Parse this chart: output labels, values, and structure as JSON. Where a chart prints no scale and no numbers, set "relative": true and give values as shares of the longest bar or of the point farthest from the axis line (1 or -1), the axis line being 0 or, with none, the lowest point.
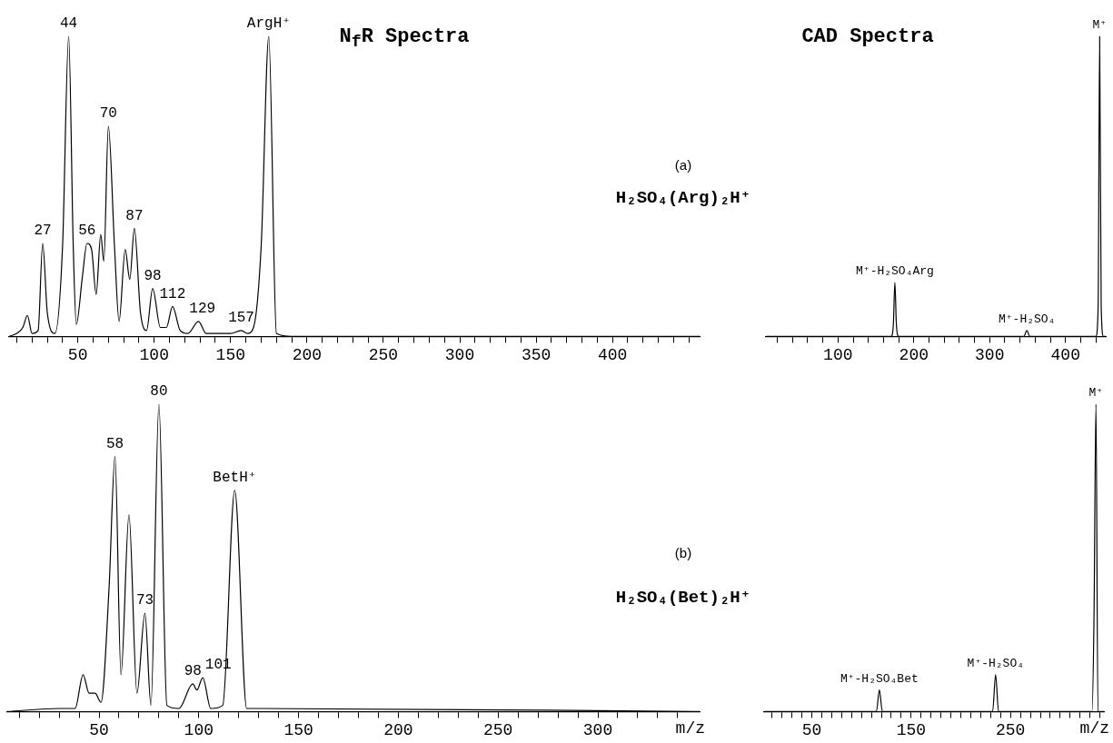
{
  "chart_data": [
    {
      "type": "line",
      "title": "N$_{f}$R Spectra",
      "relative": true,
      "tick_labels": "x",
      "grid": false,
      "legend": false,
      "marker": "none",
      "line_style": "solid",
      "xlim": [
        5,
        457
      ],
      "xticks": [
        {
          "value": 10,
          "label": null
        },
        {
          "value": 20,
          "label": null
        },
        {
          "value": 30,
          "label": null
        },
        {
          "value": 40,
          "label": null
        },
        50,
        {
          "value": 60,
          "label": null
        },
        {
          "value": 70,
          "label": null
        },
        {
          "value": 80,
          "label": null
        },
        {
          "value": 90,
          "label": null
        },
        100,
        {
          "value": 110,
          "label": null
        },
        {
          "value": 120,
          "label": null
        },
        {
          "value": 130,
          "label": null
        },
        {
          "value": 140,
          "label": null
        },
        150,
        {
          "value": 160,
          "label": null
        },
        {
          "value": 170,
          "label": null
        },
        {
          "value": 180,
          "label": null
        },
        {
          "value": 190,
          "label": null
        },
        200,
        {
          "value": 210,
          "label": null
        },
        {
          "value": 220,
          "label": null
        },
        {
          "value": 230,
          "label": null
        },
        {
          "value": 240,
          "label": null
        },
        250,
        {
          "value": 260,
          "label": null
        },
        {
          "value": 270,
          "label": null
        },
        {
          "value": 280,
          "label": null
        },
        {
          "value": 290,
          "label": null
        },
        300,
        {
          "value": 310,
          "label": null
        },
        {
          "value": 320,
          "label": null
        },
        {
          "value": 330,
          "label": null
        },
        {
          "value": 340,
          "label": null
        },
        350,
        {
          "value": 360,
          "label": null
        },
        {
          "value": 370,
          "label": null
        },
        {
          "value": 380,
          "label": null
        },
        {
          "value": 390,
          "label": null
        },
        400,
        {
          "value": 410,
          "label": null
        },
        {
          "value": 420,
          "label": null
        },
        {
          "value": 430,
          "label": null
        },
        {
          "value": 440,
          "label": null
        },
        {
          "value": 450,
          "label": null
        }
      ],
      "series": [
        {
          "color": "#000000",
          "x": [
            5,
            10,
            14,
            17,
            20,
            24,
            27,
            30,
            35,
            40,
            44,
            47,
            49,
            53,
            56,
            59,
            62,
            65,
            67,
            70,
            74,
            77,
            81,
            84,
            87,
            91,
            95,
            99,
            104,
            108,
            112,
            117,
            122,
            129,
            134,
            140,
            150,
            157,
            161,
            165,
            170,
            175,
            180,
            190,
            300,
            457
          ],
          "values": [
            0,
            0.01,
            0.03,
            0.07,
            0.01,
            0.02,
            0.31,
            0.08,
            0.01,
            0.3,
            1,
            0.3,
            0.04,
            0.2,
            0.31,
            0.29,
            0.14,
            0.34,
            0.25,
            0.7,
            0.3,
            0.05,
            0.29,
            0.19,
            0.36,
            0.08,
            0.02,
            0.16,
            0.03,
            0.03,
            0.1,
            0.02,
            0.01,
            0.05,
            0.01,
            0.01,
            0.01,
            0.02,
            0.01,
            0.03,
            0.3,
            1,
            0.01,
            0,
            0,
            0
          ]
        }
      ],
      "annotations": [
        {
          "text": "44",
          "x": 44,
          "y": 1
        },
        {
          "text": "ArgH⁺",
          "x": 175,
          "y": 1
        },
        {
          "text": "70",
          "x": 70,
          "y": 0.7
        },
        {
          "text": "27",
          "x": 27,
          "y": 0.31
        },
        {
          "text": "56",
          "x": 56,
          "y": 0.31
        },
        {
          "text": "87",
          "x": 87,
          "y": 0.36
        },
        {
          "text": "98",
          "x": 99,
          "y": 0.16
        },
        {
          "text": "112",
          "x": 112,
          "y": 0.1
        },
        {
          "text": "129",
          "x": 129,
          "y": 0.05
        },
        {
          "text": "157",
          "x": 157,
          "y": 0.02
        },
        "(a)",
        "H₂SO₄(Arg)₂H⁺"
      ]
    },
    {
      "type": "line",
      "relative": true,
      "tick_labels": "x",
      "grid": false,
      "legend": false,
      "marker": "none",
      "line_style": "solid",
      "xlabel": "m/z",
      "xlim": [
        4,
        351
      ],
      "xticks": [
        {
          "value": 10,
          "label": null
        },
        {
          "value": 20,
          "label": null
        },
        {
          "value": 30,
          "label": null
        },
        {
          "value": 40,
          "label": null
        },
        50,
        {
          "value": 60,
          "label": null
        },
        {
          "value": 70,
          "label": null
        },
        {
          "value": 80,
          "label": null
        },
        {
          "value": 90,
          "label": null
        },
        100,
        {
          "value": 110,
          "label": null
        },
        {
          "value": 120,
          "label": null
        },
        {
          "value": 130,
          "label": null
        },
        {
          "value": 140,
          "label": null
        },
        150,
        {
          "value": 160,
          "label": null
        },
        {
          "value": 170,
          "label": null
        },
        {
          "value": 180,
          "label": null
        },
        {
          "value": 190,
          "label": null
        },
        200,
        {
          "value": 210,
          "label": null
        },
        {
          "value": 220,
          "label": null
        },
        {
          "value": 230,
          "label": null
        },
        {
          "value": 240,
          "label": null
        },
        250,
        {
          "value": 260,
          "label": null
        },
        {
          "value": 270,
          "label": null
        },
        {
          "value": 280,
          "label": null
        },
        {
          "value": 290,
          "label": null
        },
        300,
        {
          "value": 310,
          "label": null
        },
        {
          "value": 320,
          "label": null
        },
        {
          "value": 330,
          "label": null
        },
        {
          "value": 340,
          "label": null
        }
      ],
      "series": [
        {
          "color": "#000000",
          "x": [
            4,
            30,
            38,
            42,
            45,
            48,
            51,
            55,
            58,
            61,
            65,
            69,
            73,
            76,
            80,
            84,
            90,
            97,
            99,
            102,
            106,
            112,
            118,
            124,
            130,
            351
          ],
          "values": [
            0,
            0.01,
            0.01,
            0.12,
            0.06,
            0.06,
            0.03,
            0.4,
            0.83,
            0.12,
            0.64,
            0.06,
            0.32,
            0.02,
            1,
            0.02,
            0.01,
            0.09,
            0.07,
            0.11,
            0.01,
            0.02,
            0.72,
            0.01,
            0.01,
            0
          ]
        }
      ],
      "annotations": [
        {
          "text": "80",
          "x": 80,
          "y": 1
        },
        {
          "text": "58",
          "x": 58,
          "y": 0.83
        },
        {
          "text": "BetH⁺",
          "x": 118,
          "y": 0.72
        },
        {
          "text": "73",
          "x": 73,
          "y": 0.32
        },
        {
          "text": "98",
          "x": 97,
          "y": 0.09
        },
        {
          "text": "101",
          "x": 102,
          "y": 0.11
        },
        "(b)",
        "H₂SO₄(Bet)₂H⁺"
      ]
    },
    {
      "type": "line",
      "title": "CAD Spectra",
      "relative": true,
      "tick_labels": "x",
      "grid": false,
      "legend": false,
      "marker": "none",
      "line_style": "solid",
      "xlim": [
        5,
        453
      ],
      "xticks": [
        {
          "value": 20,
          "label": null
        },
        {
          "value": 40,
          "label": null
        },
        {
          "value": 60,
          "label": null
        },
        {
          "value": 80,
          "label": null
        },
        100,
        {
          "value": 120,
          "label": null
        },
        {
          "value": 140,
          "label": null
        },
        {
          "value": 160,
          "label": null
        },
        {
          "value": 180,
          "label": null
        },
        200,
        {
          "value": 220,
          "label": null
        },
        {
          "value": 240,
          "label": null
        },
        {
          "value": 260,
          "label": null
        },
        {
          "value": 280,
          "label": null
        },
        300,
        {
          "value": 320,
          "label": null
        },
        {
          "value": 340,
          "label": null
        },
        {
          "value": 360,
          "label": null
        },
        {
          "value": 380,
          "label": null
        },
        400,
        {
          "value": 420,
          "label": null
        },
        {
          "value": 440,
          "label": null
        }
      ],
      "series": [
        {
          "color": "#000000",
          "x": [
            5,
            170,
            173,
            175,
            177,
            180,
            345,
            349,
            353,
            440,
            443,
            445,
            447,
            450,
            453
          ],
          "values": [
            0,
            0,
            0.04,
            0.18,
            0.04,
            0,
            0,
            0.02,
            0,
            0,
            0.1,
            1,
            0.1,
            0,
            0
          ]
        }
      ],
      "annotations": [
        {
          "text": "M⁺",
          "x": 445,
          "y": 1
        },
        {
          "text": "M⁺-H₂SO₄Arg",
          "x": 175,
          "y": 0.18
        },
        {
          "text": "M⁺-H₂SO₄",
          "x": 349,
          "y": 0.02
        }
      ]
    },
    {
      "type": "line",
      "relative": true,
      "tick_labels": "x",
      "grid": false,
      "legend": false,
      "marker": "none",
      "line_style": "solid",
      "xlabel": "m/z",
      "xlim": [
        2,
        344
      ],
      "xticks": [
        {
          "value": 10,
          "label": null
        },
        {
          "value": 20,
          "label": null
        },
        {
          "value": 30,
          "label": null
        },
        {
          "value": 40,
          "label": null
        },
        50,
        {
          "value": 60,
          "label": null
        },
        {
          "value": 70,
          "label": null
        },
        {
          "value": 80,
          "label": null
        },
        {
          "value": 90,
          "label": null
        },
        {
          "value": 100,
          "label": null
        },
        {
          "value": 110,
          "label": null
        },
        {
          "value": 120,
          "label": null
        },
        {
          "value": 130,
          "label": null
        },
        {
          "value": 140,
          "label": null
        },
        150,
        {
          "value": 160,
          "label": null
        },
        {
          "value": 170,
          "label": null
        },
        {
          "value": 180,
          "label": null
        },
        {
          "value": 190,
          "label": null
        },
        {
          "value": 200,
          "label": null
        },
        {
          "value": 210,
          "label": null
        },
        {
          "value": 220,
          "label": null
        },
        {
          "value": 230,
          "label": null
        },
        {
          "value": 240,
          "label": null
        },
        250,
        {
          "value": 260,
          "label": null
        },
        {
          "value": 270,
          "label": null
        },
        {
          "value": 280,
          "label": null
        },
        {
          "value": 290,
          "label": null
        },
        {
          "value": 300,
          "label": null
        },
        {
          "value": 310,
          "label": null
        },
        {
          "value": 320,
          "label": null
        },
        {
          "value": 330,
          "label": null
        },
        {
          "value": 340,
          "label": null
        }
      ],
      "series": [
        {
          "color": "#000000",
          "x": [
            2,
            115,
            118,
            121,
            232,
            235,
            238,
            332,
            334,
            336,
            338,
            344
          ],
          "values": [
            0,
            0,
            0.07,
            0,
            0,
            0.12,
            0,
            0,
            0.3,
            1,
            0,
            0
          ]
        }
      ],
      "annotations": [
        {
          "text": "M⁺",
          "x": 336,
          "y": 1
        },
        {
          "text": "M⁺-H₂SO₄Bet",
          "x": 118,
          "y": 0.07
        },
        {
          "text": "M⁺-H₂SO₄",
          "x": 235,
          "y": 0.12
        }
      ]
    }
  ]
}
